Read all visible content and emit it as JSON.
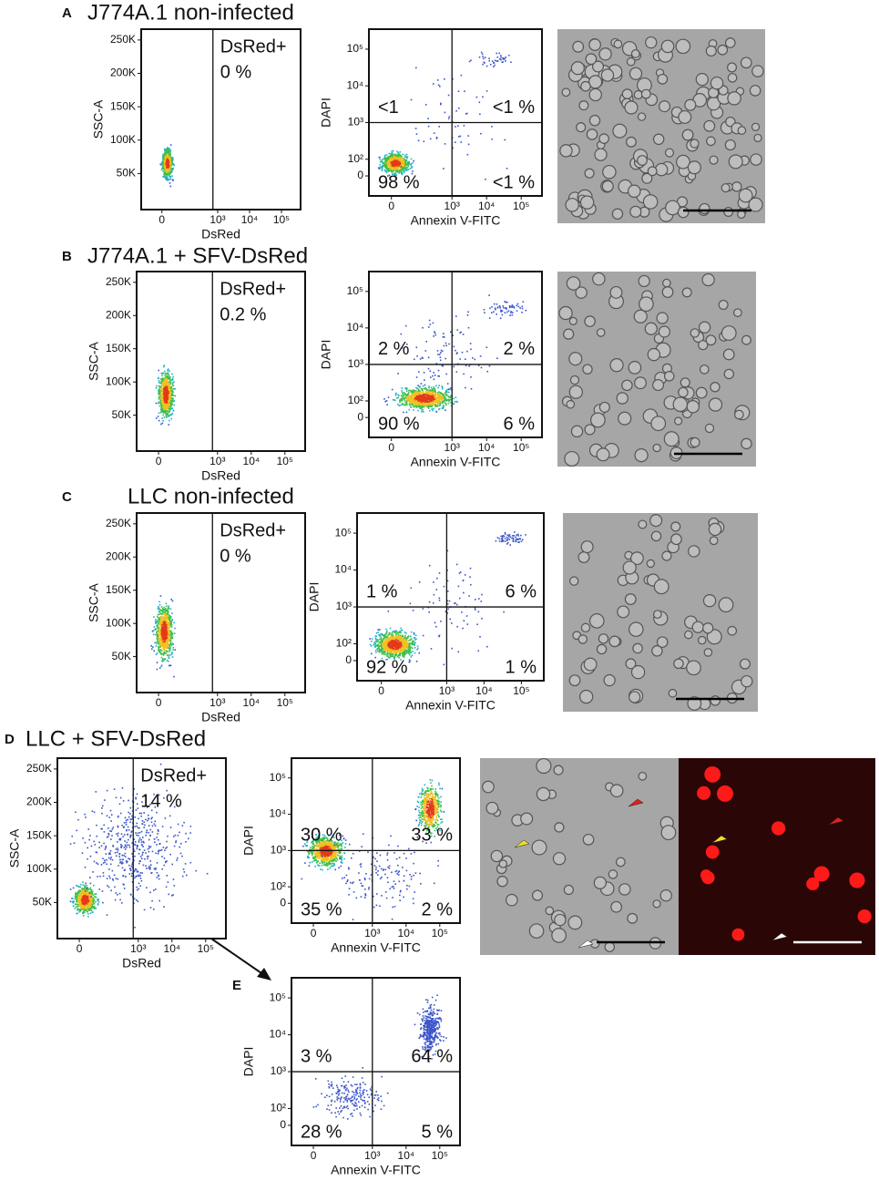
{
  "axes": {
    "ssc_label": "SSC-A",
    "dsred_label": "DsRed",
    "dapi_label": "DAPI",
    "annexin_label": "Annexin V-FITC",
    "ssc_ticks": [
      "50K",
      "100K",
      "150K",
      "200K",
      "250K"
    ],
    "x_log_ticks": [
      "0",
      "10³",
      "10⁴",
      "10⁵"
    ],
    "y_log_ticks": [
      "0",
      "10²",
      "10³",
      "10⁴",
      "10⁵"
    ]
  },
  "panels": [
    {
      "label": "A",
      "title": "J774A.1 non-infected",
      "gate_label": "DsRed+",
      "gate_percent": "0 %",
      "quadrants": [
        "<1",
        "<1 %",
        "98 %",
        "<1 %"
      ]
    },
    {
      "label": "B",
      "title": "J774A.1 + SFV-DsRed",
      "gate_label": "DsRed+",
      "gate_percent": "0.2 %",
      "quadrants": [
        "2 %",
        "2 %",
        "90 %",
        "6 %"
      ]
    },
    {
      "label": "C",
      "title": "LLC non-infected",
      "gate_label": "DsRed+",
      "gate_percent": "0 %",
      "quadrants": [
        "1 %",
        "6 %",
        "92 %",
        "1 %"
      ]
    },
    {
      "label": "D",
      "title": "LLC + SFV-DsRed",
      "gate_label": "DsRed+",
      "gate_percent": "14 %",
      "quadrants": [
        "30 %",
        "33 %",
        "35 %",
        "2 %"
      ]
    },
    {
      "label": "E",
      "quadrants": [
        "3 %",
        "64 %",
        "28 %",
        "5 %"
      ]
    }
  ]
}
